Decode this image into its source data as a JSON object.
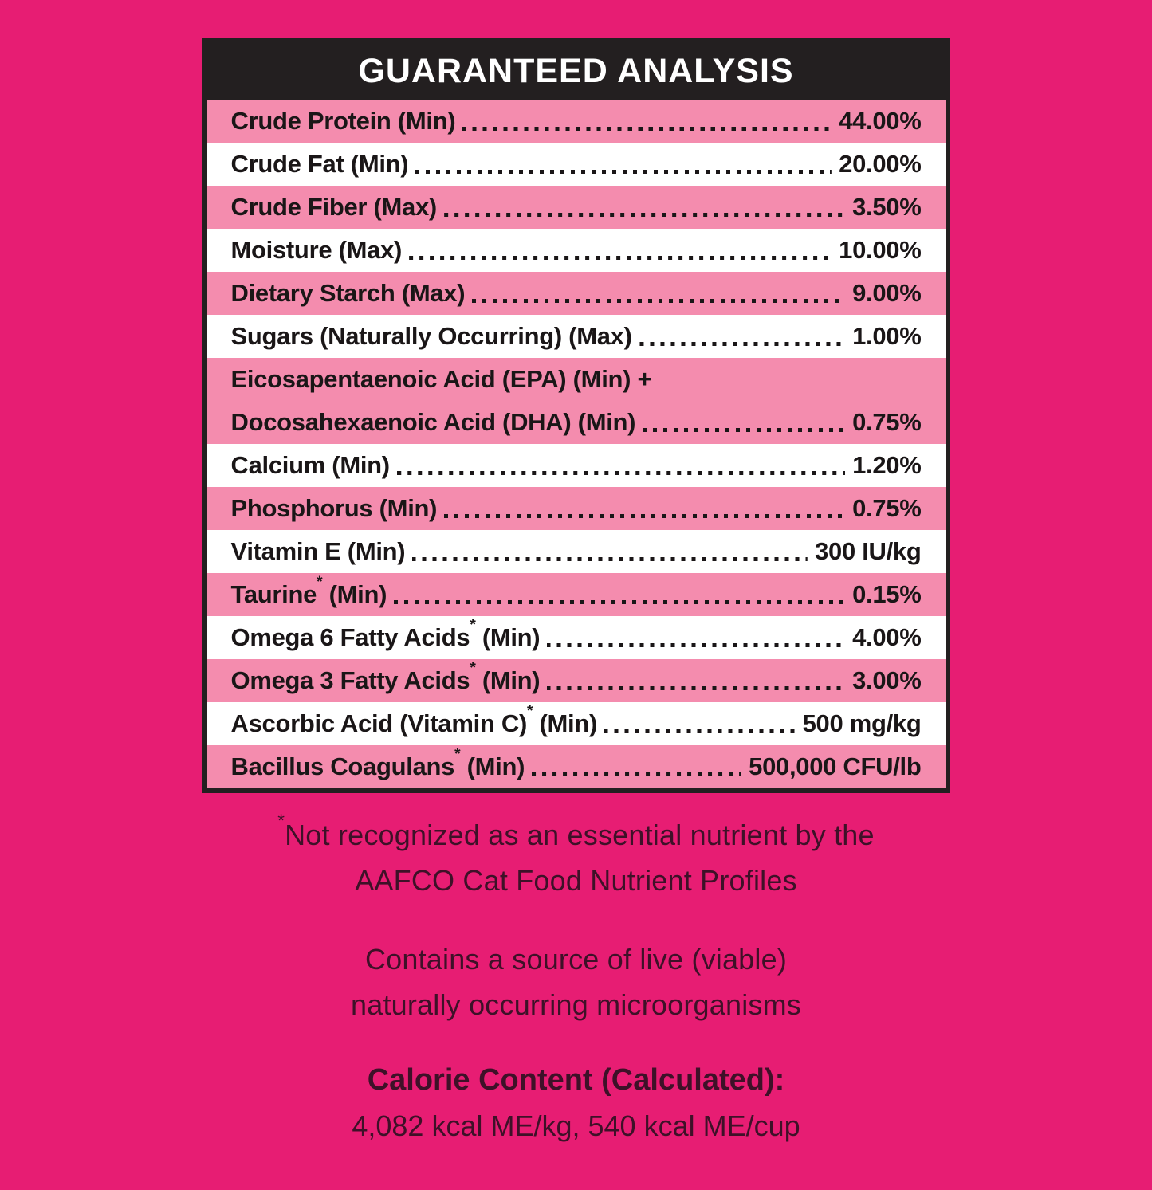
{
  "colors": {
    "background": "#E71D73",
    "row_pink": "#F48CAE",
    "row_white": "#FFFFFF",
    "header_bg": "#231F20",
    "header_text": "#FFFFFF",
    "row_text": "#1A1617",
    "footer_text": "#3E1128"
  },
  "table": {
    "title": "GUARANTEED ANALYSIS",
    "rows": [
      {
        "label": "Crude Protein (Min)",
        "value": "44.00%",
        "shade": "pink"
      },
      {
        "label": "Crude Fat (Min)",
        "value": "20.00%",
        "shade": "white"
      },
      {
        "label": "Crude Fiber (Max)",
        "value": "3.50%",
        "shade": "pink"
      },
      {
        "label": "Moisture (Max)",
        "value": "10.00%",
        "shade": "white"
      },
      {
        "label": "Dietary Starch (Max)",
        "value": "9.00%",
        "shade": "pink"
      },
      {
        "label": "Sugars (Naturally Occurring) (Max)",
        "value": "1.00%",
        "shade": "white"
      },
      {
        "label": "Eicosapentaenoic Acid (EPA) (Min) +",
        "label2": "Docosahexaenoic Acid (DHA) (Min)",
        "value": "0.75%",
        "shade": "pink"
      },
      {
        "label": "Calcium (Min)",
        "value": "1.20%",
        "shade": "white"
      },
      {
        "label": "Phosphorus (Min)",
        "value": "0.75%",
        "shade": "pink"
      },
      {
        "label": "Vitamin E (Min)",
        "value": "300 IU/kg",
        "shade": "white"
      },
      {
        "label": "Taurine* (Min)",
        "value": "0.15%",
        "shade": "pink"
      },
      {
        "label": "Omega 6 Fatty Acids* (Min)",
        "value": "4.00%",
        "shade": "white"
      },
      {
        "label": "Omega 3 Fatty Acids* (Min)",
        "value": "3.00%",
        "shade": "pink"
      },
      {
        "label": "Ascorbic Acid (Vitamin C)* (Min)",
        "value": "500 mg/kg",
        "shade": "white"
      },
      {
        "label": "Bacillus Coagulans* (Min)",
        "value": "500,000 CFU/lb",
        "shade": "pink"
      }
    ]
  },
  "footnotes": {
    "asterisk_note_line1": "*Not recognized as an essential nutrient by the",
    "asterisk_note_line2": "AAFCO Cat Food Nutrient Profiles",
    "microorganisms_line1": "Contains a source of live (viable)",
    "microorganisms_line2": "naturally occurring microorganisms",
    "calorie_heading": "Calorie Content (Calculated):",
    "calorie_values": "4,082 kcal ME/kg, 540 kcal ME/cup"
  }
}
